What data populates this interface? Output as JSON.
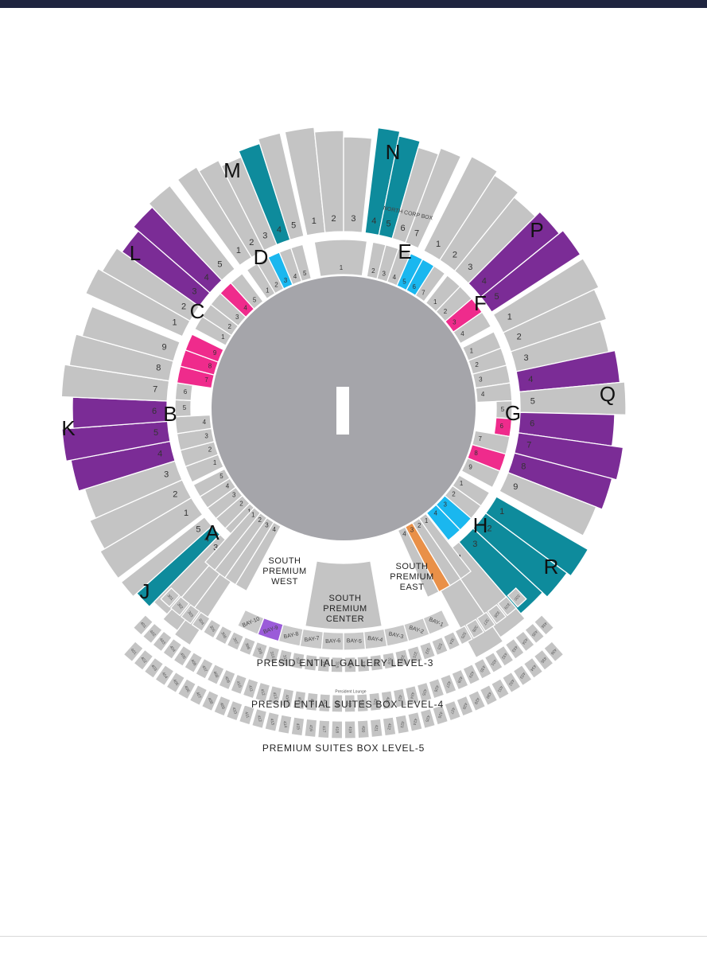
{
  "colors": {
    "background": "#ffffff",
    "topbar": "#1f2540",
    "standard": "#c4c4c4",
    "field": "#a5a5aa",
    "teal": "#0e8b9c",
    "purple": "#7b2c96",
    "pink": "#ef2b8c",
    "cyan": "#1ab7ef",
    "orange": "#e99048",
    "violet": "#9b5bd9",
    "pitch": "#ffffff"
  },
  "outer_zones": [
    {
      "letter": "J",
      "rows": [
        "1",
        "2",
        "3",
        "4",
        "5"
      ]
    },
    {
      "letter": "K",
      "rows": [
        "1",
        "2",
        "3",
        "4",
        "5",
        "6",
        "7",
        "8",
        "9"
      ]
    },
    {
      "letter": "L",
      "rows": [
        "1",
        "2",
        "3",
        "4",
        "5"
      ]
    },
    {
      "letter": "M",
      "rows": [
        "1",
        "2",
        "3",
        "4",
        "5"
      ]
    },
    {
      "letter": "",
      "rows": [
        "1",
        "2",
        "3"
      ]
    },
    {
      "letter": "N",
      "rows": [
        "4",
        "5",
        "6",
        "7"
      ]
    },
    {
      "letter": "P",
      "rows": [
        "1",
        "2",
        "3",
        "4",
        "5"
      ]
    },
    {
      "letter": "Q",
      "rows": [
        "1",
        "2",
        "3",
        "4",
        "5",
        "6",
        "7",
        "8",
        "9"
      ]
    },
    {
      "letter": "R",
      "rows": [
        "1",
        "2",
        "3",
        "4",
        "5"
      ]
    }
  ],
  "inner_zones": [
    {
      "letter": "A",
      "rows": [
        "1",
        "2",
        "3",
        "4",
        "5"
      ]
    },
    {
      "letter": "B",
      "rows": [
        "1",
        "2",
        "3",
        "4",
        "5",
        "6",
        "7",
        "8",
        "9"
      ]
    },
    {
      "letter": "C",
      "rows": [
        "1",
        "2",
        "3",
        "4",
        "5"
      ]
    },
    {
      "letter": "D",
      "rows": [
        "1",
        "2",
        "3",
        "4",
        "5"
      ]
    },
    {
      "letter": "",
      "rows": [
        "1"
      ]
    },
    {
      "letter": "E",
      "rows": [
        "2",
        "3",
        "4",
        "5",
        "6",
        "7"
      ]
    },
    {
      "letter": "F",
      "rows": [
        "1",
        "2",
        "3",
        "4"
      ]
    },
    {
      "letter": "G",
      "rows": [
        "1",
        "2",
        "3",
        "4",
        "5",
        "6",
        "7",
        "8",
        "9"
      ]
    },
    {
      "letter": "H",
      "rows": [
        "1",
        "2",
        "3",
        "4",
        "5"
      ]
    }
  ],
  "south_areas": {
    "west": {
      "line1": "SOUTH",
      "line2": "PREMIUM",
      "line3": "WEST",
      "rows": [
        "4",
        "3",
        "2",
        "1"
      ]
    },
    "center": {
      "line1": "SOUTH",
      "line2": "PREMIUM",
      "line3": "CENTER"
    },
    "east": {
      "line1": "SOUTH",
      "line2": "PREMIUM",
      "line3": "EAST",
      "rows": [
        "4",
        "3",
        "2",
        "1"
      ]
    }
  },
  "north_box": "NORTH  CORP  BOX",
  "bays": [
    "BAY-10",
    "BAY-9",
    "BAY-8",
    "BAY-7",
    "BAY-6",
    "BAY-5",
    "BAY-4",
    "BAY-3",
    "BAY-2",
    "BAY-1"
  ],
  "galleries": [
    {
      "label": "PRESID ENTIAL  GALLERY  LEVEL-3",
      "boxes_from": 301,
      "count": 30,
      "lounge": "President Lounge"
    },
    {
      "label": "PRESID ENTIAL  SUITES  BOX  LEVEL-4",
      "boxes_from": 401,
      "count": 36
    },
    {
      "label": "PREMIUM  SUITES  BOX  LEVEL-5",
      "boxes_from": 401,
      "count": 36
    }
  ]
}
